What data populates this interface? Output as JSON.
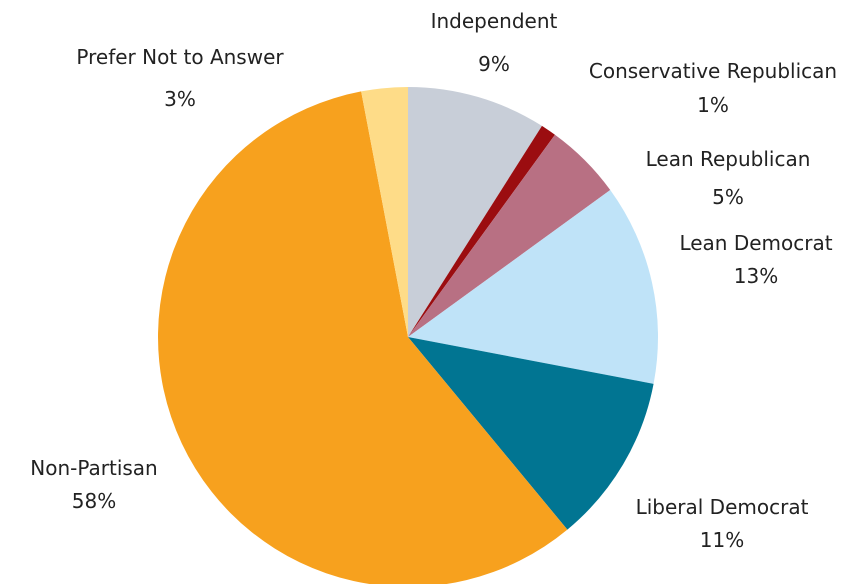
{
  "chart_data": {
    "type": "pie",
    "start_angle_deg": 0,
    "direction": "clockwise",
    "slices": [
      {
        "label": "Independent",
        "percent_label": "9%",
        "value": 9,
        "color": "#c8ced8"
      },
      {
        "label": "Conservative Republican",
        "percent_label": "1%",
        "value": 1,
        "color": "#9b0d10"
      },
      {
        "label": "Lean Republican",
        "percent_label": "5%",
        "value": 5,
        "color": "#b87083"
      },
      {
        "label": "Lean Democrat",
        "percent_label": "13%",
        "value": 13,
        "color": "#bfe3f8"
      },
      {
        "label": "Liberal Democrat",
        "percent_label": "11%",
        "value": 11,
        "color": "#017592"
      },
      {
        "label": "Non-Partisan",
        "percent_label": "58%",
        "value": 58,
        "color": "#f7a11e"
      },
      {
        "label": "Prefer Not to Answer",
        "percent_label": "3%",
        "value": 3,
        "color": "#fedc88"
      }
    ]
  }
}
